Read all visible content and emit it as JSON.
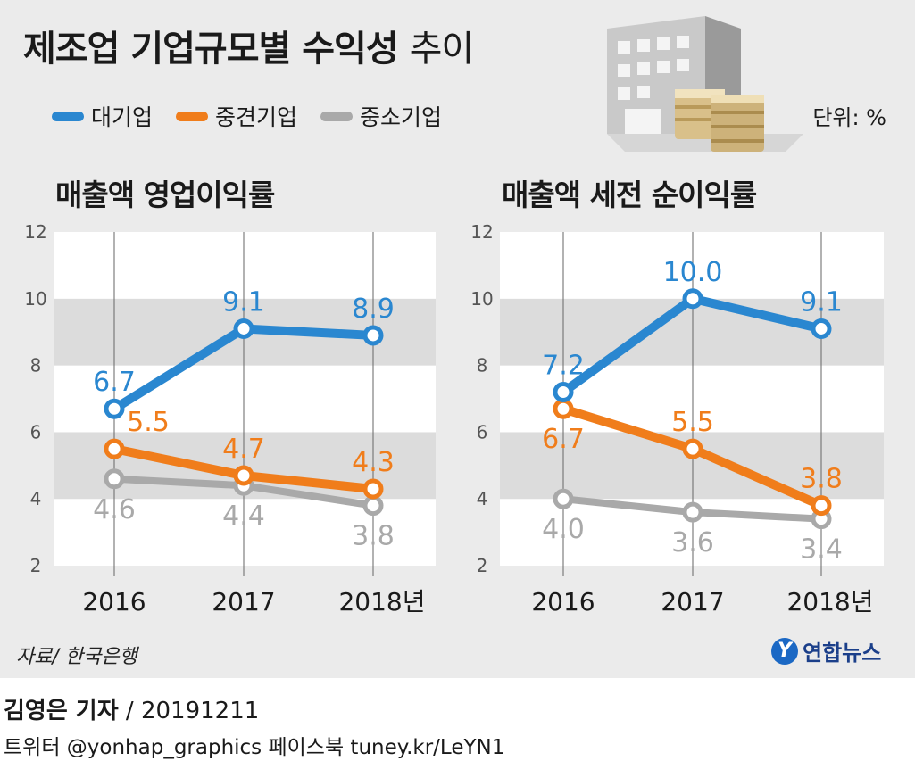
{
  "header": {
    "title_bold": "제조업 기업규모별 수익성",
    "title_light": "추이",
    "unit": "단위: %"
  },
  "legend": [
    {
      "name": "대기업",
      "color": "#2a87d0"
    },
    {
      "name": "중견기업",
      "color": "#f07d1b"
    },
    {
      "name": "중소기업",
      "color": "#a9a9a9"
    }
  ],
  "chart_data": [
    {
      "type": "line",
      "title": "매출액 영업이익률",
      "categories": [
        "2016",
        "2017",
        "2018년"
      ],
      "ylim": [
        2,
        12
      ],
      "yticks": [
        "2",
        "4",
        "6",
        "8",
        "10",
        "12"
      ],
      "series": [
        {
          "name": "대기업",
          "values": [
            6.7,
            9.1,
            8.9
          ],
          "labels": [
            "6.7",
            "9.1",
            "8.9"
          ],
          "color": "#2a87d0"
        },
        {
          "name": "중견기업",
          "values": [
            5.5,
            4.7,
            4.3
          ],
          "labels": [
            "5.5",
            "4.7",
            "4.3"
          ],
          "color": "#f07d1b"
        },
        {
          "name": "중소기업",
          "values": [
            4.6,
            4.4,
            3.8
          ],
          "labels": [
            "4.6",
            "4.4",
            "3.8"
          ],
          "color": "#a9a9a9"
        }
      ]
    },
    {
      "type": "line",
      "title": "매출액 세전 순이익률",
      "categories": [
        "2016",
        "2017",
        "2018년"
      ],
      "ylim": [
        2,
        12
      ],
      "yticks": [
        "2",
        "4",
        "6",
        "8",
        "10",
        "12"
      ],
      "series": [
        {
          "name": "대기업",
          "values": [
            7.2,
            10.0,
            9.1
          ],
          "labels": [
            "7.2",
            "10.0",
            "9.1"
          ],
          "color": "#2a87d0"
        },
        {
          "name": "중견기업",
          "values": [
            6.7,
            5.5,
            3.8
          ],
          "labels": [
            "6.7",
            "5.5",
            "3.8"
          ],
          "color": "#f07d1b"
        },
        {
          "name": "중소기업",
          "values": [
            4.0,
            3.6,
            3.4
          ],
          "labels": [
            "4.0",
            "3.6",
            "3.4"
          ],
          "color": "#a9a9a9"
        }
      ]
    }
  ],
  "footer": {
    "source": "자료/ 한국은행",
    "logo_mark": "Y",
    "logo_text": "연합뉴스",
    "reporter": "김영은 기자",
    "date": " / 20191211",
    "social": "트위터 @yonhap_graphics  페이스북 tuney.kr/LeYN1"
  }
}
